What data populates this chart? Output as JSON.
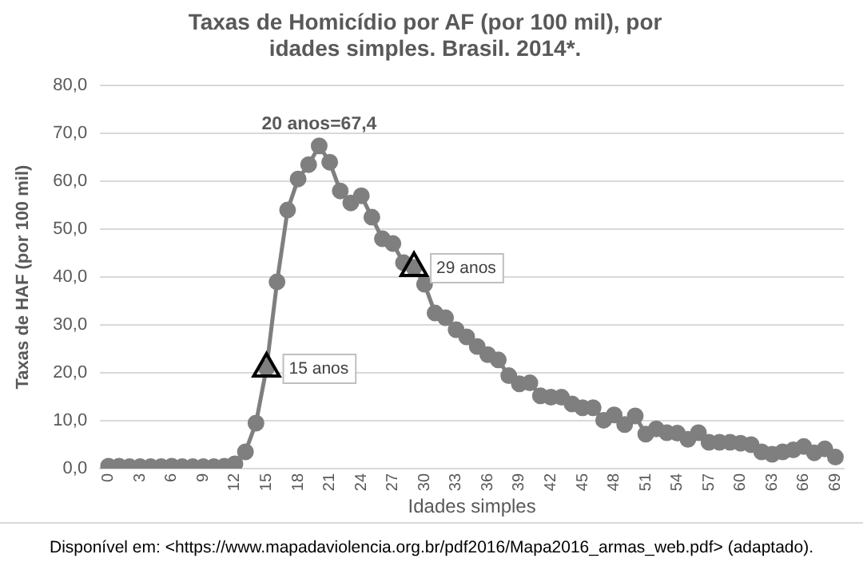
{
  "chart_data": {
    "type": "line",
    "title": [
      "Taxas de Homicídio por AF (por 100 mil), por",
      "idades simples. Brasil. 2014*."
    ],
    "xlabel": "Idades simples",
    "ylabel": "Taxas de HAF (por 100 mil)",
    "x": [
      0,
      1,
      2,
      3,
      4,
      5,
      6,
      7,
      8,
      9,
      10,
      11,
      12,
      13,
      14,
      15,
      16,
      17,
      18,
      19,
      20,
      21,
      22,
      23,
      24,
      25,
      26,
      27,
      28,
      29,
      30,
      31,
      32,
      33,
      34,
      35,
      36,
      37,
      38,
      39,
      40,
      41,
      42,
      43,
      44,
      45,
      46,
      47,
      48,
      49,
      50,
      51,
      52,
      53,
      54,
      55,
      56,
      57,
      58,
      59,
      60,
      61,
      62,
      63,
      64,
      65,
      66,
      67,
      68,
      69
    ],
    "series": [
      {
        "color": "#7f7f7f",
        "values": [
          0.5,
          0.5,
          0.4,
          0.4,
          0.4,
          0.4,
          0.5,
          0.4,
          0.4,
          0.4,
          0.4,
          0.5,
          1.0,
          3.5,
          9.5,
          21,
          39,
          54,
          60.5,
          63.5,
          67.4,
          64,
          58,
          55.5,
          57,
          52.5,
          48,
          47,
          43,
          42,
          38.5,
          32.5,
          31.5,
          29,
          27.5,
          25.5,
          23.8,
          22.7,
          19.4,
          17.7,
          17.9,
          15.2,
          14.9,
          14.9,
          13.5,
          12.7,
          12.7,
          10.1,
          11.2,
          9.2,
          11,
          7.2,
          8.3,
          7.5,
          7.4,
          6.1,
          7.5,
          5.5,
          5.5,
          5.5,
          5.3,
          5,
          3.5,
          3,
          3.5,
          3.9,
          4.6,
          3.3,
          4.1,
          2.4
        ]
      }
    ],
    "xlim": [
      -0.8,
      69.8
    ],
    "xticks": [
      0,
      3,
      6,
      9,
      12,
      15,
      18,
      21,
      24,
      27,
      30,
      33,
      36,
      39,
      42,
      45,
      48,
      51,
      54,
      57,
      60,
      63,
      66,
      69
    ],
    "ylim": [
      0,
      80
    ],
    "yticks": [
      {
        "value": 0,
        "label": "0,0"
      },
      {
        "value": 10,
        "label": "10,0"
      },
      {
        "value": 20,
        "label": "20,0"
      },
      {
        "value": 30,
        "label": "30,0"
      },
      {
        "value": 40,
        "label": "40,0"
      },
      {
        "value": 50,
        "label": "50,0"
      },
      {
        "value": 60,
        "label": "60,0"
      },
      {
        "value": 70,
        "label": "70,0"
      },
      {
        "value": 80,
        "label": "80,0"
      }
    ],
    "grid": "y",
    "legend": false,
    "marker": "circle",
    "line_style": "solid",
    "annotations": [
      {
        "text": "20 anos=67,4",
        "x": 20,
        "y": 67.4
      },
      {
        "text": "15 anos",
        "x": 15,
        "y": 21
      },
      {
        "text": "29 anos",
        "x": 29,
        "y": 42
      },
      "Disponível em: <https://www.mapadaviolencia.org.br/pdf2016/Mapa2016_armas_web.pdf> (adaptado)."
    ]
  }
}
